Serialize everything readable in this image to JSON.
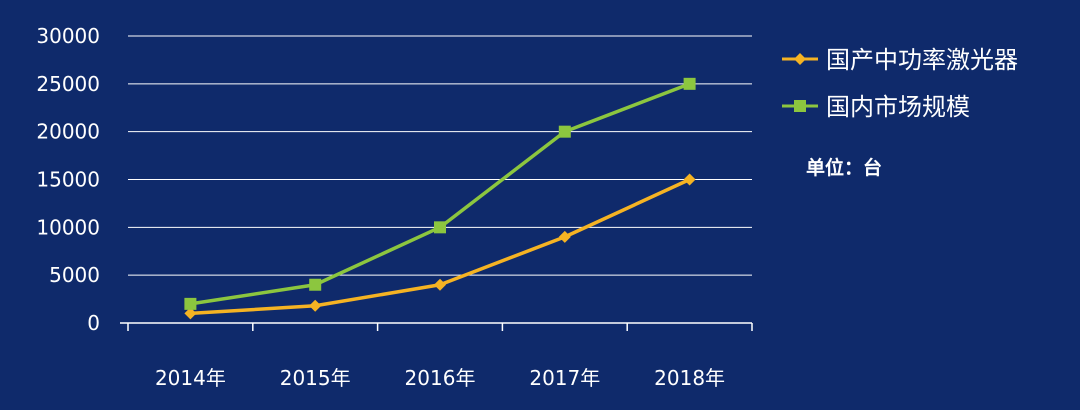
{
  "chart_data": {
    "type": "line",
    "categories": [
      "2014年",
      "2015年",
      "2016年",
      "2017年",
      "2018年"
    ],
    "series": [
      {
        "name": "国产中功率激光器",
        "values": [
          1000,
          1800,
          4000,
          9000,
          15000
        ],
        "color": "#f5b323",
        "marker": "diamond"
      },
      {
        "name": "国内市场规模",
        "values": [
          2000,
          4000,
          10000,
          20000,
          25000
        ],
        "color": "#8cc63f",
        "marker": "square"
      }
    ],
    "ylim": [
      0,
      30000
    ],
    "yticks": [
      0,
      5000,
      10000,
      15000,
      20000,
      25000,
      30000
    ],
    "grid": true,
    "legend_position": "right",
    "unit_note": "单位：台",
    "background": "#0f2a6b",
    "axis_color": "#ffffff"
  }
}
